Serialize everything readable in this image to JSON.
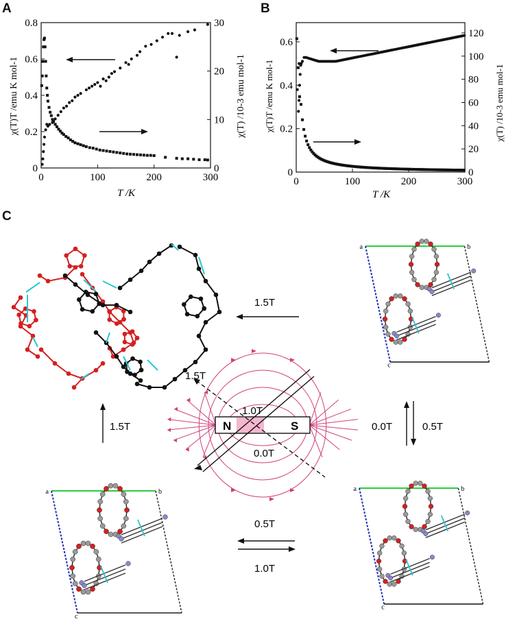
{
  "panels": {
    "a": {
      "letter": "A",
      "left_axis_label": "χ(T)T /emu K mol-1",
      "right_axis_label": "χ(T) /10-3 emu mol-1",
      "x_axis_label": "T /K",
      "left_ticks": [
        "0",
        "0.2",
        "0.4",
        "0.6",
        "0.8"
      ],
      "right_ticks": [
        "0",
        "10",
        "20",
        "30"
      ],
      "x_ticks": [
        "0",
        "100",
        "200",
        "300"
      ]
    },
    "b": {
      "letter": "B",
      "left_axis_label": "χ(T)T /emu K mol-1",
      "right_axis_label": "χ(T) /10-3 emu mol-1",
      "x_axis_label": "T /K",
      "left_ticks": [
        "0",
        "0.2",
        "0.4",
        "0.6"
      ],
      "right_ticks": [
        "0",
        "20",
        "40",
        "60",
        "80",
        "100",
        "120"
      ],
      "x_ticks": [
        "0",
        "100",
        "200",
        "300"
      ]
    },
    "c": {
      "letter": "C",
      "magnet_n": "N",
      "magnet_s": "S",
      "field_labels": [
        "1.5T",
        "1.0T",
        "0.0T"
      ],
      "arrow_labels": {
        "top": "1.5T",
        "left": "1.5T",
        "right_up": "0.0T",
        "right_down": "0.5T",
        "bottom_top": "0.5T",
        "bottom_bottom": "1.0T"
      },
      "cell_labels": [
        "a",
        "b",
        "c"
      ]
    }
  },
  "colors": {
    "black": "#111111",
    "oxygen": "#d42020",
    "carbon_gray": "#9a9a9a",
    "nitrogen": "#8888cc",
    "cyan_bond": "#2bc6cf",
    "green_axis": "#2ecc40",
    "blue_axis": "#1f2fb8",
    "field_line": "#d0407a",
    "magnet_fill": "#f6b6cf"
  }
}
